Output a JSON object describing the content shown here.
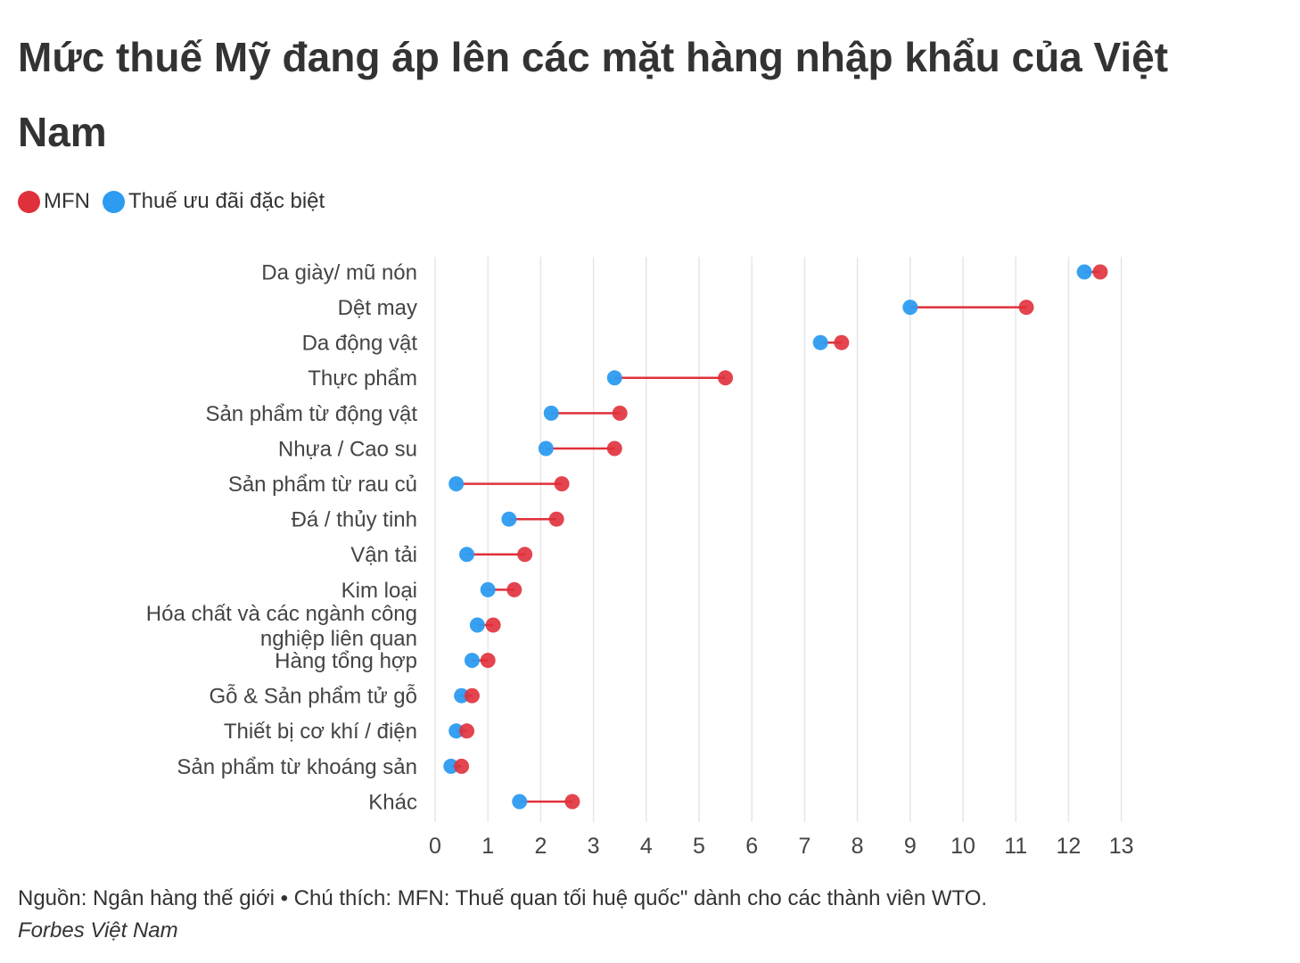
{
  "title": "Mức thuế Mỹ đang áp lên các mặt hàng nhập khẩu của Việt Nam",
  "legend": {
    "mfn_label": "MFN",
    "special_label": "Thuế ưu đãi đặc biệt"
  },
  "footer": {
    "note": "Nguồn: Ngân hàng thế giới • Chú thích: MFN: Thuế quan tối huệ quốc\" dành cho các thành viên WTO.",
    "source": "Forbes Việt Nam"
  },
  "colors": {
    "mfn": "#e0303b",
    "special": "#2d9bf0",
    "connector": "#e0303b",
    "grid": "#e6e6e6"
  },
  "chart_data": {
    "type": "dumbbell",
    "xlim": [
      0,
      13
    ],
    "xticks": [
      0,
      1,
      2,
      3,
      4,
      5,
      6,
      7,
      8,
      9,
      10,
      11,
      12,
      13
    ],
    "grid": true,
    "legend_position": "top-left",
    "categories": [
      "Da giày/ mũ nón",
      "Dệt may",
      "Da động vật",
      "Thực phẩm",
      "Sản phẩm từ động vật",
      "Nhựa / Cao su",
      "Sản phẩm từ rau củ",
      "Đá / thủy tinh",
      "Vận tải",
      "Kim loại",
      "Hóa chất và các ngành công nghiệp liên quan",
      "Hàng tổng hợp",
      "Gỗ & Sản phẩm tử gỗ",
      "Thiết bị cơ khí / điện",
      "Sản phẩm từ khoáng sản",
      "Khác"
    ],
    "series": [
      {
        "name": "MFN",
        "values": [
          12.6,
          11.2,
          7.7,
          5.5,
          3.5,
          3.4,
          2.4,
          2.3,
          1.7,
          1.5,
          1.1,
          1.0,
          0.7,
          0.6,
          0.5,
          2.6
        ]
      },
      {
        "name": "Thuế ưu đãi đặc biệt",
        "values": [
          12.3,
          9.0,
          7.3,
          3.4,
          2.2,
          2.1,
          0.4,
          1.4,
          0.6,
          1.0,
          0.8,
          0.7,
          0.5,
          0.4,
          0.3,
          1.6
        ]
      }
    ]
  }
}
